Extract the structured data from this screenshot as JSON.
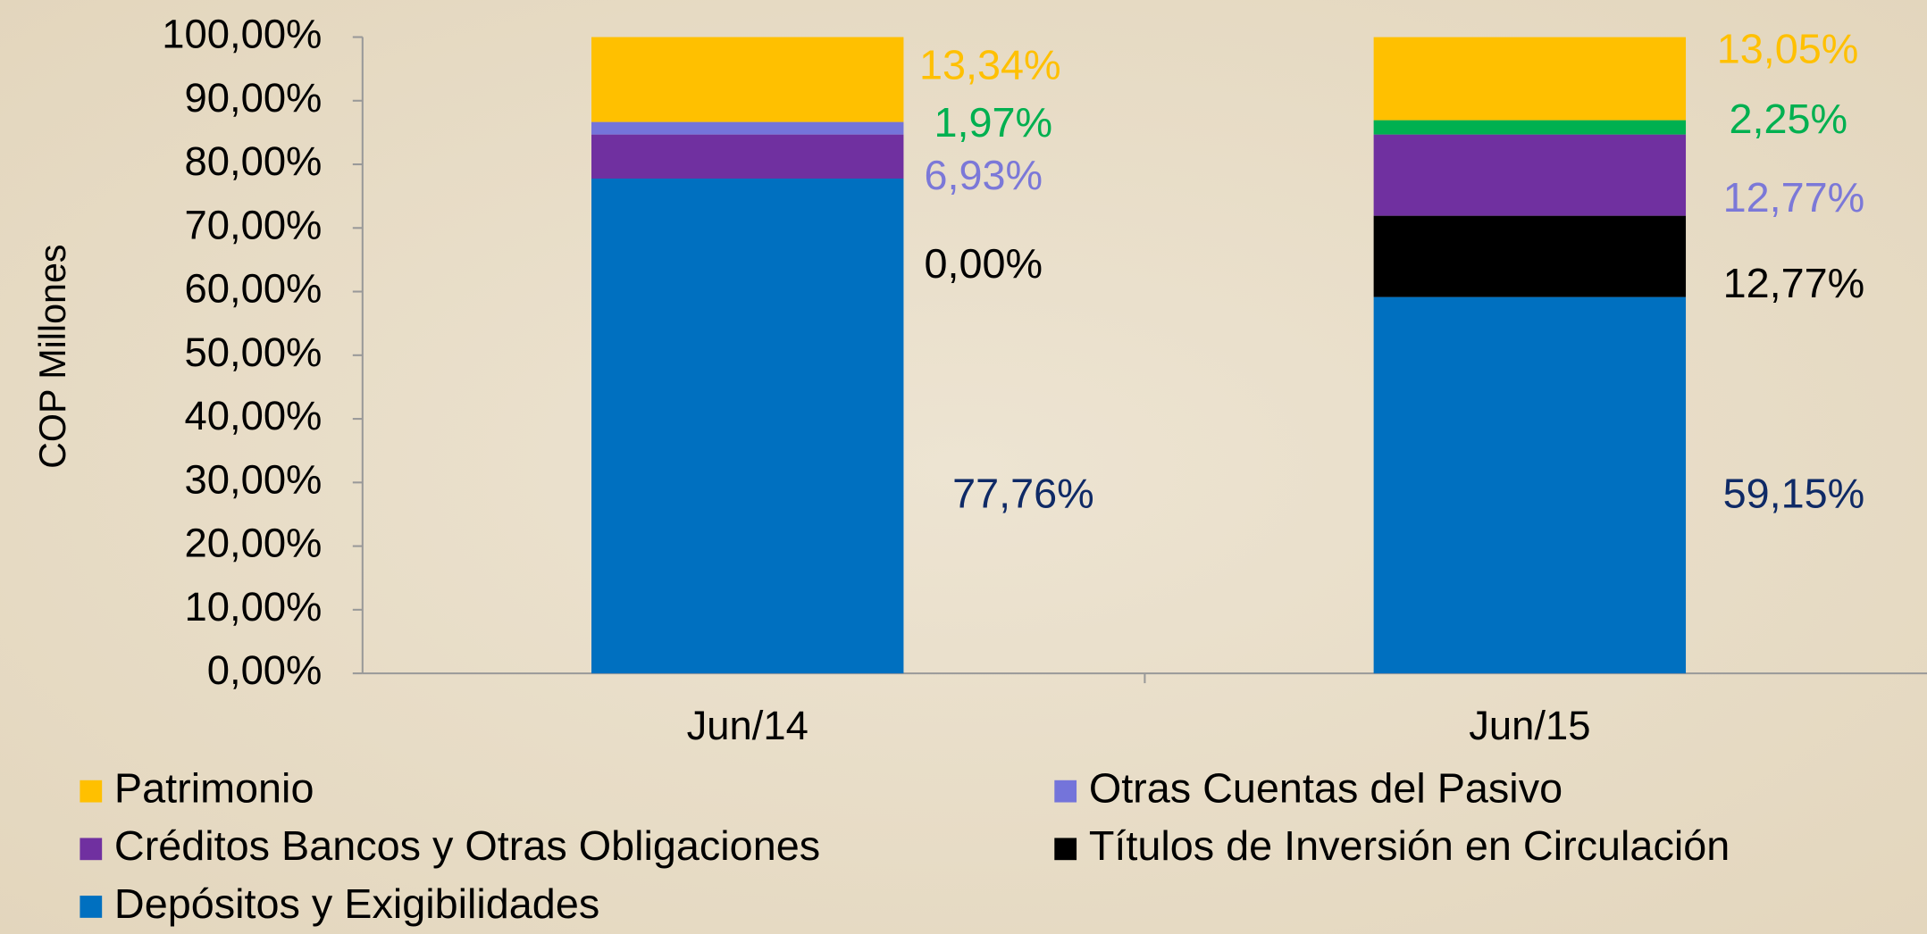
{
  "chart_data": {
    "type": "stacked_bar",
    "y_axis_label": "COP Millones",
    "categories": [
      "Jun/14",
      "Jun/15"
    ],
    "ylim": [
      0,
      100
    ],
    "yticks": [
      {
        "value": 0,
        "label": "0,00%"
      },
      {
        "value": 10,
        "label": "10,00%"
      },
      {
        "value": 20,
        "label": "20,00%"
      },
      {
        "value": 30,
        "label": "30,00%"
      },
      {
        "value": 40,
        "label": "40,00%"
      },
      {
        "value": 50,
        "label": "50,00%"
      },
      {
        "value": 60,
        "label": "60,00%"
      },
      {
        "value": 70,
        "label": "70,00%"
      },
      {
        "value": 80,
        "label": "80,00%"
      },
      {
        "value": 90,
        "label": "90,00%"
      },
      {
        "value": 100,
        "label": "100,00%"
      }
    ],
    "series": [
      {
        "name": "Depósitos y Exigibilidades",
        "color": "#0070c0",
        "label_color": "#0f2a66",
        "values": [
          77.76,
          59.15
        ],
        "value_labels": [
          "77,76%",
          "59,15%"
        ]
      },
      {
        "name": "Títulos de Inversión en Circulación",
        "color": "#000000",
        "label_color": "#000000",
        "values": [
          0,
          12.77
        ],
        "value_labels": [
          "0,00%",
          "12,77%"
        ]
      },
      {
        "name": "Créditos Bancos y Otras Obligaciones",
        "color": "#7030a0",
        "label_color": "#7b78d8",
        "values": [
          6.93,
          12.77
        ],
        "value_labels": [
          "6,93%",
          "12,77%"
        ]
      },
      {
        "name": "Otras Cuentas del Pasivo",
        "color": "#7474da",
        "point_colors": [
          "#7474da",
          "#00b050"
        ],
        "label_color": "#00b050",
        "values": [
          1.97,
          2.25
        ],
        "value_labels": [
          "1,97%",
          "2,25%"
        ]
      },
      {
        "name": "Patrimonio",
        "color": "#ffc000",
        "label_color": "#ffc000",
        "values": [
          13.34,
          13.05
        ],
        "value_labels": [
          "13,34%",
          "13,05%"
        ]
      }
    ]
  }
}
